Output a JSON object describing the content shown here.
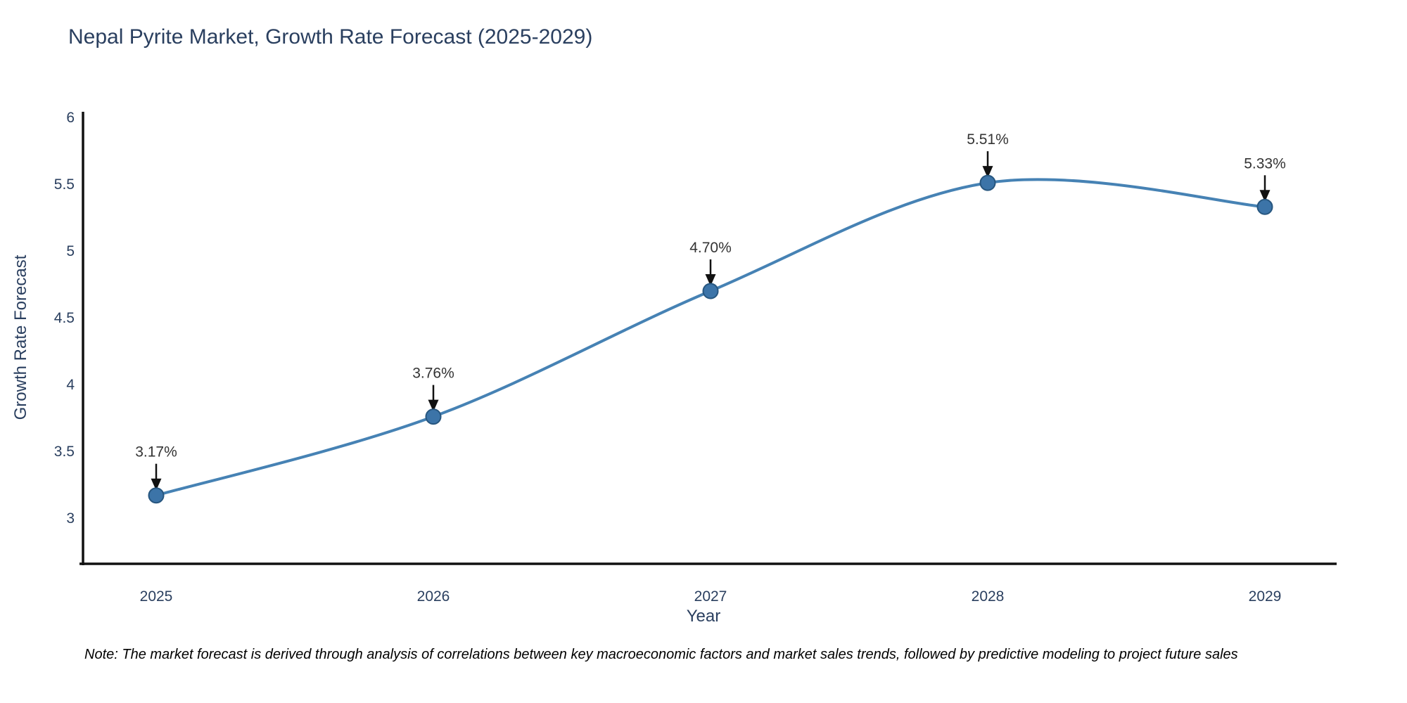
{
  "chart_data": {
    "type": "line",
    "line_shape": "spline",
    "title": "Nepal Pyrite Market, Growth Rate Forecast (2025-2029)",
    "xlabel": "Year",
    "ylabel": "Growth Rate Forecast",
    "x": [
      2025,
      2026,
      2027,
      2028,
      2029
    ],
    "series": [
      {
        "name": "Growth Rate Forecast",
        "values": [
          3.17,
          3.76,
          4.7,
          5.51,
          5.33
        ]
      }
    ],
    "point_labels": [
      "3.17%",
      "3.76%",
      "4.70%",
      "5.51%",
      "5.33%"
    ],
    "y_ticks": [
      3,
      3.5,
      4,
      4.5,
      5,
      5.5,
      6
    ],
    "ylim": [
      2.66,
      6.05
    ],
    "grid": false,
    "legend_shown": false,
    "annotations_arrow": "down-black-arrow",
    "colors": {
      "line": "#4682b4",
      "marker_fill": "#3c74a8",
      "marker_edge": "#27567f",
      "axis_line": "#111111",
      "tick_text": "#2a3f5f",
      "title_text": "#2a3f5f",
      "annotation_text": "#333333",
      "arrow": "#111111",
      "note_text": "#000000",
      "background": "#ffffff"
    }
  },
  "note": "Note: The market forecast is derived through analysis of correlations between key macroeconomic factors and market sales trends, followed by predictive modeling to project future sales"
}
